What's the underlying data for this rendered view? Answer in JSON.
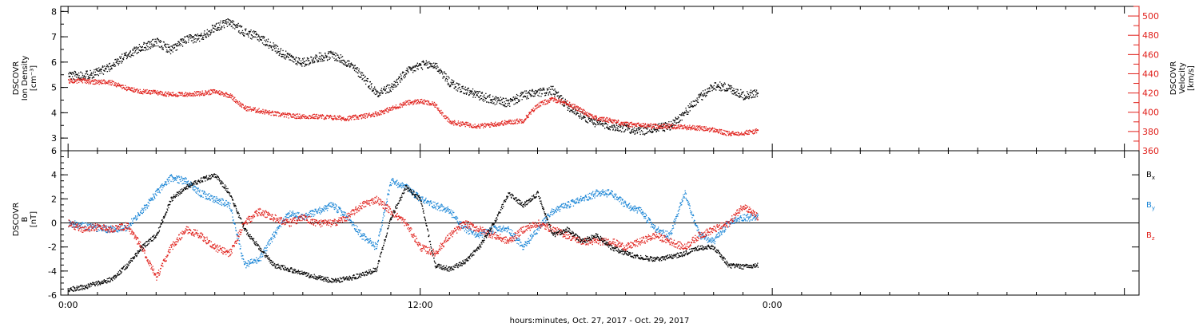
{
  "xlabel": "hours:minutes, Oct. 27, 2017 - Oct. 29, 2017",
  "x_tick_labels": [
    "0:00",
    "12:00",
    "0:00"
  ],
  "chart_data": [
    {
      "type": "scatter",
      "panel": "top",
      "ylabel_left": [
        "DSCOVR",
        "Ion Density",
        "[cm⁻³]"
      ],
      "ylabel_right": [
        "DSCOVR",
        "Velocity",
        "[km/s]"
      ],
      "xlim_hours": [
        -0.25,
        36.5
      ],
      "ylim_left": [
        2.5,
        8.2
      ],
      "ylim_right": [
        360,
        510
      ],
      "y_ticks_left": [
        3,
        4,
        5,
        6,
        7,
        8
      ],
      "y_ticks_right": [
        360,
        380,
        400,
        420,
        440,
        460,
        480,
        500
      ],
      "series": [
        {
          "name": "Ion Density",
          "axis": "left",
          "color": "#000000",
          "x_hours": [
            0.0,
            0.5,
            1.0,
            1.5,
            2.0,
            2.5,
            3.0,
            3.5,
            4.0,
            4.5,
            5.0,
            5.5,
            6.0,
            6.5,
            7.0,
            7.5,
            8.0,
            8.5,
            9.0,
            9.5,
            10.0,
            10.5,
            11.0,
            11.5,
            12.0,
            12.5,
            13.0,
            13.5,
            14.0,
            14.5,
            15.0,
            15.5,
            16.0,
            16.5,
            17.0,
            17.5,
            18.0,
            18.5,
            19.0,
            19.5,
            20.0,
            20.5,
            21.0,
            21.5,
            22.0,
            22.5,
            23.0,
            23.5
          ],
          "values": [
            5.5,
            5.5,
            5.6,
            5.9,
            6.3,
            6.6,
            6.8,
            6.5,
            6.9,
            7.0,
            7.4,
            7.6,
            7.2,
            7.0,
            6.6,
            6.2,
            6.0,
            6.2,
            6.3,
            6.0,
            5.5,
            4.8,
            5.0,
            5.6,
            5.9,
            5.9,
            5.2,
            4.9,
            4.7,
            4.5,
            4.4,
            4.7,
            4.8,
            4.9,
            4.3,
            3.9,
            3.6,
            3.5,
            3.4,
            3.3,
            3.4,
            3.5,
            4.0,
            4.6,
            5.1,
            5.0,
            4.7,
            4.8
          ]
        },
        {
          "name": "Velocity",
          "axis": "right",
          "color": "#e0201b",
          "x_hours": [
            0.0,
            0.5,
            1.0,
            1.5,
            2.0,
            2.5,
            3.0,
            3.5,
            4.0,
            4.5,
            5.0,
            5.5,
            6.0,
            6.5,
            7.0,
            7.5,
            8.0,
            8.5,
            9.0,
            9.5,
            10.0,
            10.5,
            11.0,
            11.5,
            12.0,
            12.5,
            13.0,
            13.5,
            14.0,
            14.5,
            15.0,
            15.5,
            16.0,
            16.5,
            17.0,
            17.5,
            18.0,
            18.5,
            19.0,
            19.5,
            20.0,
            20.5,
            21.0,
            21.5,
            22.0,
            22.5,
            23.0,
            23.5
          ],
          "values": [
            433,
            433,
            432,
            431,
            425,
            422,
            421,
            419,
            419,
            420,
            422,
            418,
            405,
            402,
            399,
            397,
            396,
            396,
            395,
            394,
            396,
            399,
            404,
            410,
            412,
            408,
            390,
            388,
            386,
            388,
            390,
            392,
            408,
            414,
            410,
            402,
            394,
            392,
            388,
            387,
            386,
            386,
            385,
            384,
            382,
            378,
            379,
            381
          ]
        }
      ]
    },
    {
      "type": "scatter",
      "panel": "bottom",
      "ylabel_left": [
        "DSCOVR",
        "B",
        "[nT]"
      ],
      "xlim_hours": [
        -0.25,
        36.5
      ],
      "ylim": [
        -6,
        6
      ],
      "y_ticks": [
        -6,
        -4,
        -2,
        0,
        2,
        4,
        6
      ],
      "zero_line": true,
      "legend": [
        "Bx",
        "By",
        "Bz"
      ],
      "series": [
        {
          "name": "Bx",
          "color": "#000000",
          "x_hours": [
            0.0,
            0.5,
            1.0,
            1.5,
            2.0,
            2.5,
            3.0,
            3.5,
            4.0,
            4.5,
            5.0,
            5.5,
            6.0,
            6.5,
            7.0,
            7.5,
            8.0,
            8.5,
            9.0,
            9.5,
            10.0,
            10.5,
            11.0,
            11.5,
            12.0,
            12.5,
            13.0,
            13.5,
            14.0,
            14.5,
            15.0,
            15.5,
            16.0,
            16.5,
            17.0,
            17.5,
            18.0,
            18.5,
            19.0,
            19.5,
            20.0,
            20.5,
            21.0,
            21.5,
            22.0,
            22.5,
            23.0,
            23.5
          ],
          "values": [
            -5.5,
            -5.3,
            -5.0,
            -4.6,
            -3.5,
            -2.0,
            -1.0,
            2.0,
            3.0,
            3.6,
            4.0,
            2.5,
            -0.5,
            -2.0,
            -3.5,
            -3.8,
            -4.2,
            -4.5,
            -4.8,
            -4.6,
            -4.3,
            -3.8,
            0.5,
            3.0,
            2.0,
            -3.5,
            -3.8,
            -3.2,
            -2.0,
            0.0,
            2.5,
            1.5,
            2.5,
            -1.0,
            -0.5,
            -1.5,
            -1.0,
            -2.0,
            -2.5,
            -2.8,
            -3.0,
            -2.8,
            -2.5,
            -2.0,
            -2.0,
            -3.5,
            -3.6,
            -3.5
          ]
        },
        {
          "name": "By",
          "color": "#1a85d6",
          "x_hours": [
            0.0,
            0.5,
            1.0,
            1.5,
            2.0,
            2.5,
            3.0,
            3.5,
            4.0,
            4.5,
            5.0,
            5.5,
            6.0,
            6.5,
            7.0,
            7.5,
            8.0,
            8.5,
            9.0,
            9.5,
            10.0,
            10.5,
            11.0,
            11.5,
            12.0,
            12.5,
            13.0,
            13.5,
            14.0,
            14.5,
            15.0,
            15.5,
            16.0,
            16.5,
            17.0,
            17.5,
            18.0,
            18.5,
            19.0,
            19.5,
            20.0,
            20.5,
            21.0,
            21.5,
            22.0,
            22.5,
            23.0,
            23.5
          ],
          "values": [
            0.0,
            -0.2,
            -0.4,
            -0.5,
            -0.3,
            1.0,
            2.5,
            3.8,
            3.5,
            2.5,
            2.0,
            1.5,
            -3.5,
            -3.0,
            -1.0,
            0.8,
            0.5,
            1.0,
            1.5,
            0.5,
            -1.0,
            -2.0,
            3.5,
            3.0,
            2.0,
            1.5,
            1.0,
            -0.5,
            -1.0,
            -0.5,
            -0.5,
            -2.0,
            -0.5,
            1.0,
            1.5,
            2.0,
            2.5,
            2.5,
            1.5,
            1.0,
            -0.5,
            -1.0,
            2.5,
            -1.0,
            -1.5,
            0.0,
            0.5,
            0.5
          ]
        },
        {
          "name": "Bz",
          "color": "#e0201b",
          "x_hours": [
            0.0,
            0.5,
            1.0,
            1.5,
            2.0,
            2.5,
            3.0,
            3.5,
            4.0,
            4.5,
            5.0,
            5.5,
            6.0,
            6.5,
            7.0,
            7.5,
            8.0,
            8.5,
            9.0,
            9.5,
            10.0,
            10.5,
            11.0,
            11.5,
            12.0,
            12.5,
            13.0,
            13.5,
            14.0,
            14.5,
            15.0,
            15.5,
            16.0,
            16.5,
            17.0,
            17.5,
            18.0,
            18.5,
            19.0,
            19.5,
            20.0,
            20.5,
            21.0,
            21.5,
            22.0,
            22.5,
            23.0,
            23.5
          ],
          "values": [
            0.0,
            -0.5,
            -0.3,
            -0.5,
            -0.2,
            -2.0,
            -4.5,
            -2.0,
            -0.5,
            -1.0,
            -2.0,
            -2.5,
            0.0,
            1.0,
            0.5,
            0.0,
            0.5,
            0.0,
            0.0,
            0.5,
            1.5,
            2.0,
            1.0,
            0.0,
            -2.0,
            -2.5,
            -1.0,
            0.0,
            -0.5,
            -1.0,
            -1.5,
            -0.5,
            0.0,
            -0.5,
            -1.0,
            -1.5,
            -1.5,
            -1.5,
            -2.0,
            -1.5,
            -1.0,
            -1.5,
            -2.0,
            -1.0,
            -0.5,
            0.0,
            1.5,
            0.5
          ]
        }
      ]
    }
  ]
}
